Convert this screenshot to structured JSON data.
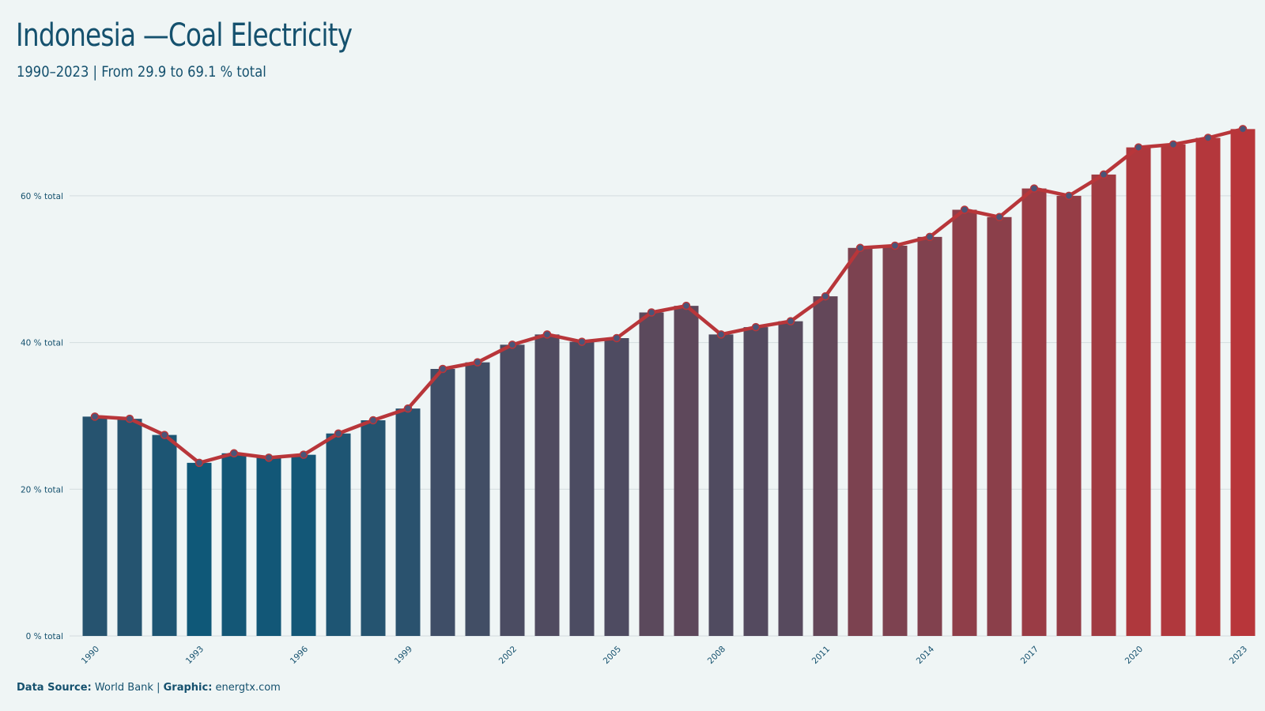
{
  "header": {
    "title": "Indonesia —Coal Electricity",
    "subtitle": "1990–2023 | From 29.9 to 69.1 % total"
  },
  "footer": {
    "source_label": "Data Source:",
    "source_value": "World Bank",
    "separator": "|",
    "graphic_label": "Graphic:",
    "graphic_value": "energtx.com"
  },
  "colors": {
    "background": "#eff5f5",
    "text": "#15516e",
    "bar_low": "#0f5878",
    "bar_high": "#b8363a",
    "line": "#b8363a",
    "marker_fill": "#4a5578",
    "grid": "#d3dcdf"
  },
  "chart_data": {
    "type": "bar",
    "title": "Indonesia —Coal Electricity",
    "subtitle": "1990–2023 | From 29.9 to 69.1 % total",
    "xlabel": "",
    "ylabel": "",
    "ylim": [
      0,
      70
    ],
    "yticks": [
      0,
      20,
      40,
      60
    ],
    "ytick_labels": [
      "0 % total",
      "20 % total",
      "40 % total",
      "60 % total"
    ],
    "xtick_labels": [
      "1990",
      "1993",
      "1996",
      "1999",
      "2002",
      "2005",
      "2008",
      "2011",
      "2014",
      "2017",
      "2020",
      "2023"
    ],
    "grid": "horizontal",
    "categories": [
      1990,
      1991,
      1992,
      1993,
      1994,
      1995,
      1996,
      1997,
      1998,
      1999,
      2000,
      2001,
      2002,
      2003,
      2004,
      2005,
      2006,
      2007,
      2008,
      2009,
      2010,
      2011,
      2012,
      2013,
      2014,
      2015,
      2016,
      2017,
      2018,
      2019,
      2020,
      2021,
      2022,
      2023
    ],
    "values": [
      29.9,
      29.6,
      27.4,
      23.6,
      24.9,
      24.3,
      24.7,
      27.6,
      29.4,
      31.0,
      36.4,
      37.3,
      39.7,
      41.1,
      40.1,
      40.6,
      44.1,
      45.0,
      41.1,
      42.1,
      42.9,
      46.3,
      52.9,
      53.2,
      54.4,
      58.1,
      57.1,
      61.0,
      60.0,
      62.9,
      66.6,
      67.0,
      67.9,
      69.1
    ],
    "overlay": "line with circle markers over bars"
  }
}
